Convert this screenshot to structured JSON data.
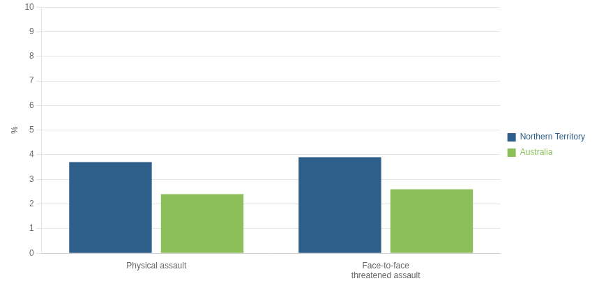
{
  "chart_data": {
    "type": "bar",
    "categories": [
      "Physical assault",
      "Face-to-face\nthreatened assault"
    ],
    "series": [
      {
        "name": "Northern Territory",
        "color": "#2E5F8A",
        "values": [
          3.7,
          3.9
        ]
      },
      {
        "name": "Australia",
        "color": "#8CBF5A",
        "values": [
          2.4,
          2.6
        ]
      }
    ],
    "ylabel": "%",
    "ylim": [
      0,
      10
    ],
    "yticks": [
      0,
      1,
      2,
      3,
      4,
      5,
      6,
      7,
      8,
      9,
      10
    ],
    "grid": true,
    "legend": "right"
  }
}
